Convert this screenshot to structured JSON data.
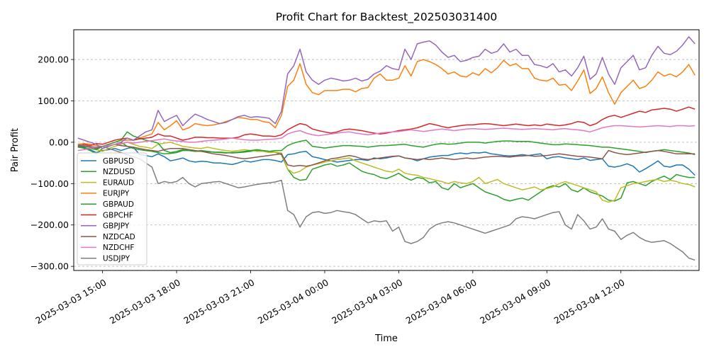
{
  "chart_data": {
    "type": "line",
    "title": "Profit Chart for Backtest_202503031400",
    "xlabel": "Time",
    "ylabel": "Pair Profit",
    "x_start": "2025-03-03 14:00",
    "x_step_minutes": 15,
    "xlim": [
      "2025-03-03 13:50",
      "2025-03-04 15:10"
    ],
    "ylim": [
      -310,
      272
    ],
    "xticks": [
      {
        "label": "2025-03-03 15:00",
        "value": "2025-03-03 15:00"
      },
      {
        "label": "2025-03-03 18:00",
        "value": "2025-03-03 18:00"
      },
      {
        "label": "2025-03-03 21:00",
        "value": "2025-03-03 21:00"
      },
      {
        "label": "2025-03-04 00:00",
        "value": "2025-03-04 00:00"
      },
      {
        "label": "2025-03-04 03:00",
        "value": "2025-03-04 03:00"
      },
      {
        "label": "2025-03-04 06:00",
        "value": "2025-03-04 06:00"
      },
      {
        "label": "2025-03-04 09:00",
        "value": "2025-03-04 09:00"
      },
      {
        "label": "2025-03-04 12:00",
        "value": "2025-03-04 12:00"
      }
    ],
    "yticks": [
      {
        "label": "200.00",
        "value": 200
      },
      {
        "label": "100.00",
        "value": 100
      },
      {
        "label": "0.00",
        "value": 0
      },
      {
        "label": "−100.00",
        "value": -100
      },
      {
        "label": "−200.00",
        "value": -200
      },
      {
        "label": "−300.00",
        "value": -300
      }
    ],
    "grid": true,
    "legend_position": "lower-left",
    "series": [
      {
        "name": "GBPUSD",
        "color": "#1f77b4",
        "values": [
          -8,
          -12,
          -18,
          -25,
          -20,
          -18,
          -15,
          -20,
          -15,
          -12,
          -30,
          -32,
          -35,
          -28,
          -35,
          -45,
          -42,
          -38,
          -45,
          -48,
          -46,
          -47,
          -50,
          -50,
          -52,
          -54,
          -50,
          -45,
          -48,
          -45,
          -42,
          -42,
          -44,
          -48,
          -30,
          -28,
          -24,
          -22,
          -35,
          -38,
          -42,
          -45,
          -48,
          -46,
          -44,
          -42,
          -42,
          -44,
          -38,
          -40,
          -38,
          -35,
          -33,
          -38,
          -40,
          -45,
          -40,
          -36,
          -34,
          -32,
          -32,
          -28,
          -26,
          -28,
          -25,
          -26,
          -24,
          -28,
          -30,
          -32,
          -33,
          -32,
          -30,
          -32,
          -30,
          -28,
          -40,
          -36,
          -35,
          -38,
          -40,
          -42,
          -38,
          -44,
          -42,
          -40,
          -58,
          -60,
          -57,
          -52,
          -58,
          -72,
          -64,
          -55,
          -45,
          -58,
          -60,
          -55,
          -55,
          -65,
          -80
        ]
      },
      {
        "name": "NZDUSD",
        "color": "#2ca02c",
        "values": [
          -10,
          -15,
          -20,
          -28,
          -15,
          -10,
          -5,
          0,
          -10,
          -15,
          -18,
          -20,
          -22,
          -25,
          -28,
          -27,
          -25,
          -20,
          -20,
          -22,
          -22,
          -23,
          -24,
          -24,
          -25,
          -26,
          -25,
          -24,
          -22,
          -20,
          -20,
          -22,
          -24,
          -30,
          -65,
          -85,
          -92,
          -90,
          -65,
          -60,
          -55,
          -52,
          -58,
          -55,
          -50,
          -60,
          -70,
          -75,
          -78,
          -85,
          -88,
          -82,
          -75,
          -85,
          -92,
          -85,
          -88,
          -98,
          -95,
          -110,
          -115,
          -100,
          -110,
          -105,
          -100,
          -110,
          -120,
          -125,
          -130,
          -138,
          -142,
          -138,
          -135,
          -140,
          -130,
          -120,
          -110,
          -105,
          -108,
          -100,
          -115,
          -120,
          -110,
          -120,
          -125,
          -130,
          -140,
          -142,
          -135,
          -98,
          -95,
          -100,
          -105,
          -95,
          -88,
          -82,
          -90,
          -78,
          -82,
          -85,
          -85
        ]
      },
      {
        "name": "EURAUD",
        "color": "#bcbd22",
        "values": [
          -5,
          -8,
          -12,
          -18,
          -22,
          -15,
          -10,
          -5,
          0,
          -5,
          -10,
          -12,
          -15,
          -5,
          -2,
          0,
          -5,
          -10,
          -12,
          -14,
          -15,
          -12,
          -15,
          -18,
          -20,
          -22,
          -20,
          -18,
          -20,
          -22,
          -22,
          -25,
          -24,
          -26,
          -65,
          -75,
          -70,
          -60,
          -55,
          -52,
          -48,
          -45,
          -42,
          -40,
          -38,
          -45,
          -50,
          -55,
          -60,
          -65,
          -70,
          -72,
          -65,
          -75,
          -78,
          -80,
          -85,
          -88,
          -92,
          -95,
          -100,
          -95,
          -98,
          -100,
          -95,
          -85,
          -100,
          -95,
          -90,
          -100,
          -105,
          -110,
          -115,
          -112,
          -108,
          -115,
          -112,
          -108,
          -100,
          -95,
          -100,
          -105,
          -110,
          -115,
          -120,
          -140,
          -145,
          -140,
          -110,
          -105,
          -100,
          -98,
          -95,
          -92,
          -90,
          -95,
          -92,
          -95,
          -100,
          -102,
          -108
        ]
      },
      {
        "name": "EURJPY",
        "color": "#ff7f0e",
        "values": [
          -5,
          -3,
          -5,
          -8,
          -10,
          -5,
          0,
          5,
          5,
          5,
          10,
          15,
          20,
          48,
          30,
          40,
          52,
          30,
          35,
          45,
          42,
          40,
          42,
          45,
          50,
          55,
          60,
          58,
          55,
          55,
          50,
          48,
          35,
          65,
          135,
          150,
          190,
          140,
          120,
          115,
          125,
          125,
          125,
          128,
          128,
          122,
          130,
          132,
          155,
          165,
          150,
          150,
          155,
          185,
          160,
          195,
          200,
          195,
          188,
          178,
          165,
          170,
          160,
          158,
          168,
          162,
          178,
          168,
          180,
          198,
          185,
          190,
          178,
          178,
          155,
          150,
          148,
          155,
          138,
          140,
          125,
          148,
          175,
          118,
          130,
          158,
          120,
          92,
          120,
          135,
          150,
          130,
          135,
          150,
          170,
          160,
          165,
          158,
          170,
          188,
          162
        ]
      },
      {
        "name": "GBPAUD",
        "color": "#2ca02c",
        "values": [
          -12,
          -14,
          -15,
          -18,
          -10,
          -5,
          0,
          5,
          25,
          15,
          10,
          5,
          2,
          -2,
          -20,
          -25,
          -22,
          -18,
          -20,
          -22,
          -20,
          -22,
          -24,
          -25,
          -26,
          -25,
          -24,
          -22,
          -20,
          -18,
          -20,
          -22,
          -20,
          -20,
          -8,
          -2,
          2,
          5,
          -10,
          -12,
          -14,
          -12,
          -10,
          -8,
          -8,
          -9,
          -10,
          -12,
          -10,
          -8,
          -8,
          -7,
          -6,
          -5,
          -8,
          -10,
          -12,
          -8,
          -5,
          -3,
          -5,
          -4,
          -2,
          0,
          0,
          0,
          -2,
          0,
          2,
          3,
          3,
          2,
          2,
          2,
          0,
          -2,
          -4,
          -6,
          -6,
          -4,
          -5,
          -6,
          -7,
          -8,
          -10,
          -12,
          -12,
          -14,
          -16,
          -18,
          -20,
          -22,
          -25,
          -22,
          -20,
          -18,
          -20,
          -22,
          -24,
          -26,
          -30
        ]
      },
      {
        "name": "GBPCHF",
        "color": "#d62728",
        "values": [
          -10,
          -5,
          -8,
          -3,
          -5,
          0,
          5,
          8,
          10,
          5,
          8,
          10,
          12,
          20,
          15,
          15,
          10,
          5,
          8,
          12,
          12,
          11,
          11,
          10,
          10,
          10,
          12,
          18,
          20,
          18,
          15,
          15,
          14,
          18,
          30,
          38,
          45,
          42,
          32,
          28,
          25,
          22,
          25,
          30,
          32,
          30,
          28,
          25,
          22,
          20,
          22,
          25,
          28,
          30,
          32,
          35,
          40,
          45,
          42,
          38,
          35,
          38,
          40,
          42,
          42,
          44,
          45,
          44,
          42,
          40,
          42,
          44,
          42,
          40,
          42,
          40,
          44,
          42,
          40,
          42,
          45,
          50,
          48,
          40,
          45,
          55,
          62,
          65,
          60,
          65,
          70,
          75,
          72,
          78,
          80,
          82,
          80,
          75,
          80,
          85,
          80
        ]
      },
      {
        "name": "GBPJPY",
        "color": "#9467bd",
        "values": [
          10,
          5,
          0,
          -5,
          -15,
          -10,
          -5,
          0,
          10,
          5,
          15,
          25,
          30,
          77,
          50,
          58,
          65,
          40,
          55,
          68,
          62,
          55,
          50,
          45,
          48,
          55,
          62,
          65,
          60,
          62,
          60,
          58,
          45,
          75,
          165,
          185,
          225,
          170,
          150,
          140,
          150,
          155,
          152,
          148,
          150,
          155,
          148,
          152,
          165,
          172,
          185,
          178,
          175,
          225,
          200,
          238,
          242,
          245,
          235,
          218,
          205,
          210,
          195,
          198,
          205,
          208,
          225,
          215,
          220,
          238,
          218,
          225,
          210,
          210,
          188,
          185,
          180,
          190,
          170,
          175,
          160,
          180,
          208,
          152,
          165,
          205,
          165,
          140,
          180,
          195,
          210,
          175,
          180,
          210,
          232,
          215,
          212,
          220,
          235,
          255,
          238
        ]
      },
      {
        "name": "NZDCAD",
        "color": "#8c564b",
        "values": [
          -8,
          -10,
          -12,
          -15,
          -10,
          -8,
          -5,
          -8,
          -10,
          -12,
          -15,
          -18,
          -20,
          -22,
          -18,
          -15,
          -15,
          -15,
          -18,
          -20,
          -22,
          -25,
          -28,
          -30,
          -32,
          -35,
          -38,
          -40,
          -38,
          -36,
          -34,
          -32,
          -30,
          -28,
          -55,
          -58,
          -56,
          -58,
          -55,
          -50,
          -45,
          -40,
          -38,
          -35,
          -32,
          -35,
          -40,
          -42,
          -40,
          -38,
          -36,
          -34,
          -33,
          -38,
          -40,
          -42,
          -40,
          -42,
          -40,
          -38,
          -40,
          -42,
          -40,
          -38,
          -40,
          -38,
          -36,
          -35,
          -34,
          -35,
          -36,
          -34,
          -33,
          -32,
          -34,
          -33,
          -32,
          -30,
          -28,
          -30,
          -32,
          -34,
          -35,
          -36,
          -38,
          -40,
          -20,
          -25,
          -28,
          -30,
          -28,
          -26,
          -24,
          -22,
          -20,
          -22,
          -25,
          -28,
          -28,
          -28,
          -28
        ]
      },
      {
        "name": "NZDCHF",
        "color": "#e377c2",
        "values": [
          -20,
          -18,
          -15,
          -12,
          -10,
          -8,
          -5,
          -3,
          0,
          -2,
          0,
          2,
          4,
          6,
          8,
          5,
          3,
          2,
          0,
          0,
          2,
          4,
          5,
          6,
          8,
          10,
          8,
          6,
          5,
          5,
          6,
          7,
          8,
          10,
          20,
          25,
          28,
          22,
          18,
          16,
          18,
          20,
          22,
          24,
          25,
          22,
          20,
          18,
          20,
          22,
          24,
          25,
          26,
          28,
          30,
          28,
          26,
          28,
          30,
          32,
          30,
          28,
          30,
          32,
          33,
          32,
          31,
          32,
          33,
          34,
          33,
          32,
          31,
          32,
          33,
          32,
          31,
          30,
          32,
          33,
          31,
          30,
          28,
          25,
          30,
          35,
          38,
          40,
          40,
          39,
          38,
          37,
          38,
          39,
          40,
          39,
          38,
          40,
          40,
          39,
          40
        ]
      },
      {
        "name": "USDJPY",
        "color": "#7f7f7f",
        "values": [
          -5,
          -8,
          -10,
          -12,
          -10,
          -15,
          -20,
          -25,
          -30,
          -35,
          -40,
          -50,
          -60,
          -100,
          -95,
          -98,
          -95,
          -85,
          -100,
          -108,
          -100,
          -98,
          -96,
          -95,
          -100,
          -105,
          -110,
          -108,
          -105,
          -102,
          -100,
          -98,
          -96,
          -92,
          -165,
          -175,
          -205,
          -180,
          -170,
          -168,
          -172,
          -170,
          -165,
          -168,
          -170,
          -175,
          -185,
          -195,
          -190,
          -192,
          -190,
          -215,
          -205,
          -240,
          -245,
          -240,
          -230,
          -210,
          -200,
          -195,
          -192,
          -195,
          -200,
          -205,
          -210,
          -215,
          -220,
          -215,
          -210,
          -205,
          -200,
          -185,
          -180,
          -182,
          -185,
          -180,
          -175,
          -170,
          -168,
          -200,
          -210,
          -175,
          -190,
          -210,
          -205,
          -185,
          -210,
          -215,
          -235,
          -225,
          -218,
          -230,
          -238,
          -242,
          -240,
          -238,
          -245,
          -255,
          -265,
          -280,
          -285
        ]
      }
    ]
  }
}
